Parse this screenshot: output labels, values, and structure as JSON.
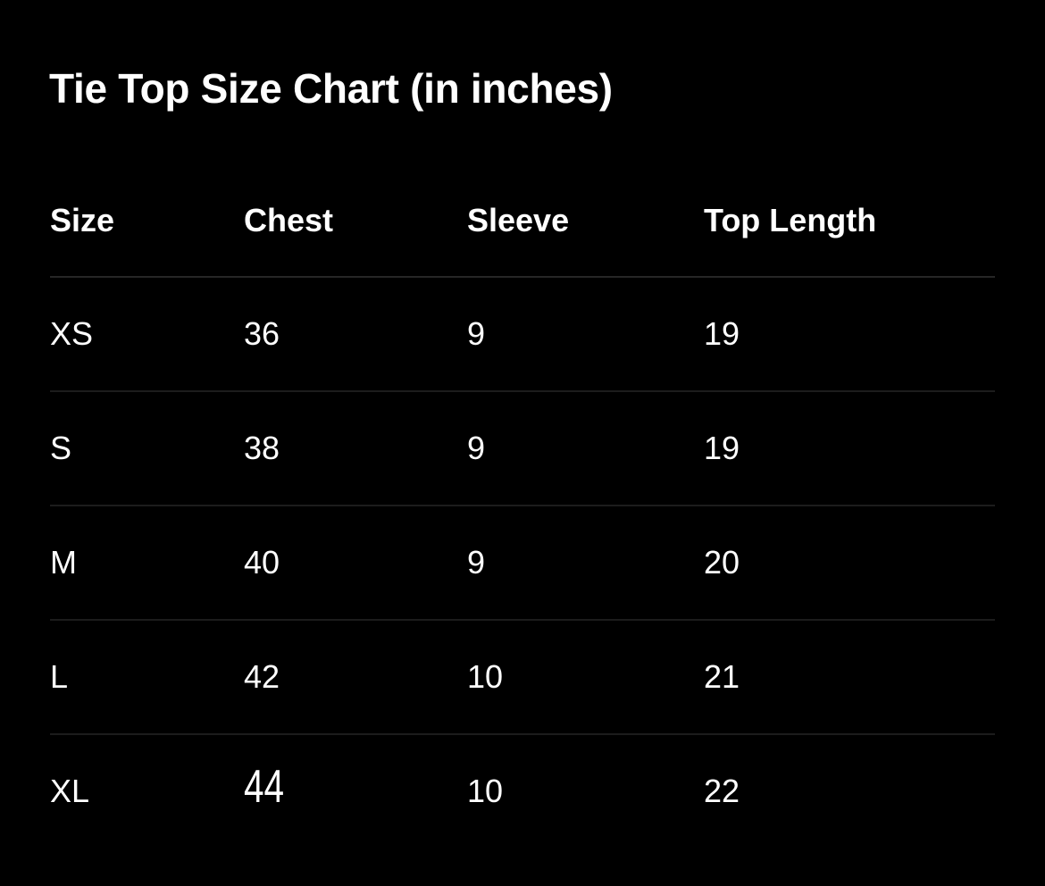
{
  "title": "Tie Top Size Chart (in inches)",
  "table": {
    "headers": [
      "Size",
      "Chest",
      "Sleeve",
      "Top Length"
    ],
    "rows": [
      [
        "XS",
        "36",
        "9",
        "19"
      ],
      [
        "S",
        "38",
        "9",
        "19"
      ],
      [
        "M",
        "40",
        "9",
        "20"
      ],
      [
        "L",
        "42",
        "10",
        "21"
      ],
      [
        "XL",
        "44",
        "10",
        "22"
      ]
    ]
  },
  "colors": {
    "background": "#000000",
    "text": "#ffffff",
    "divider": "#1c1c1c"
  }
}
